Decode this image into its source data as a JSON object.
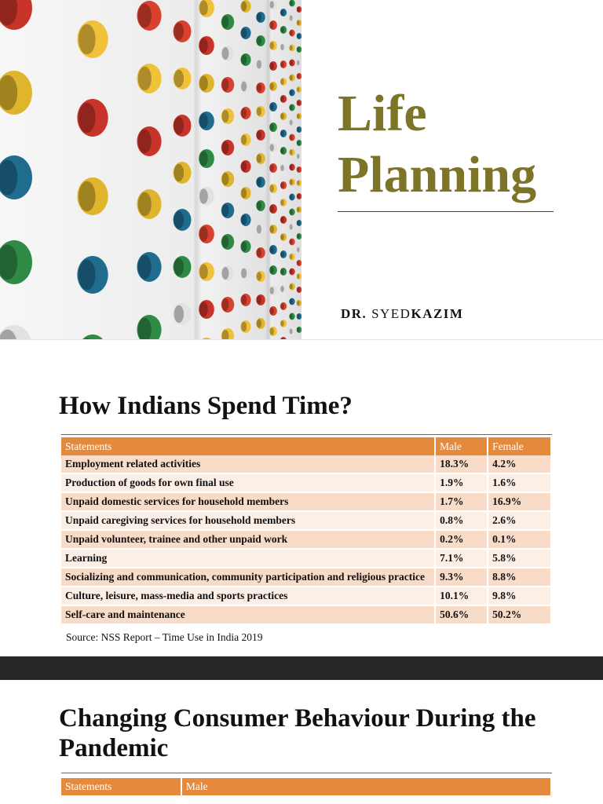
{
  "slide1": {
    "title_line1": "Life",
    "title_line2": "Planning",
    "author_prefix": "DR.",
    "author_first": "SYED",
    "author_last": "KAZIM"
  },
  "slide2": {
    "heading": "How Indians Spend Time?",
    "columns": [
      "Statements",
      "Male",
      "Female"
    ],
    "rows": [
      [
        "Employment related activities",
        "18.3%",
        "4.2%"
      ],
      [
        "Production of goods for own final use",
        "1.9%",
        "1.6%"
      ],
      [
        "Unpaid domestic services for household members",
        "1.7%",
        "16.9%"
      ],
      [
        "Unpaid caregiving services for household members",
        "0.8%",
        "2.6%"
      ],
      [
        "Unpaid volunteer, trainee and other unpaid work",
        "0.2%",
        "0.1%"
      ],
      [
        "Learning",
        "7.1%",
        "5.8%"
      ],
      [
        "Socializing and communication, community participation and religious practice",
        "9.3%",
        "8.8%"
      ],
      [
        "Culture, leisure, mass-media and sports practices",
        "10.1%",
        "9.8%"
      ],
      [
        "Self-care and maintenance",
        "50.6%",
        "50.2%"
      ]
    ],
    "source": "Source: NSS Report – Time Use in India 2019"
  },
  "slide3": {
    "heading": "Changing Consumer Behaviour During the Pandemic",
    "columns": [
      "Statements",
      "Male"
    ]
  },
  "colors": {
    "title": "#7d7428",
    "table_header": "#e58a3d",
    "row_odd": "#f8dcc8",
    "row_even": "#fcefe6",
    "band": "#262626"
  }
}
